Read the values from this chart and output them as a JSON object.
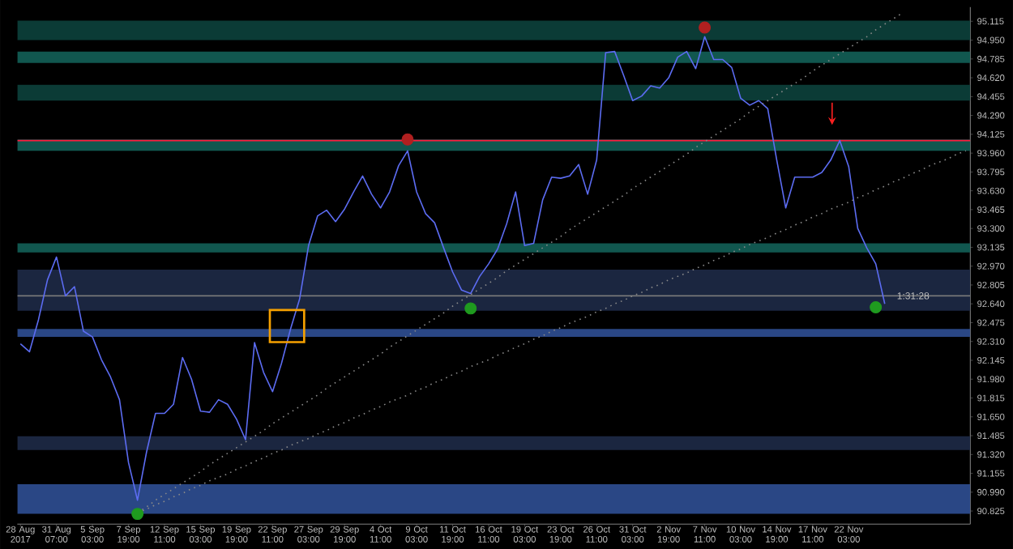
{
  "chart_data": {
    "type": "line",
    "categories": [
      "28 Aug 2017",
      null,
      null,
      null,
      "31 Aug 07:00",
      null,
      null,
      null,
      "5 Sep 03:00",
      null,
      null,
      null,
      "7 Sep 19:00",
      null,
      null,
      null,
      "12 Sep 11:00",
      null,
      null,
      null,
      "15 Sep 03:00",
      null,
      null,
      null,
      "19 Sep 19:00",
      null,
      null,
      null,
      "22 Sep 11:00",
      null,
      null,
      null,
      "27 Sep 03:00",
      null,
      null,
      null,
      "29 Sep 19:00",
      null,
      null,
      null,
      "4 Oct 11:00",
      null,
      null,
      null,
      "9 Oct 03:00",
      null,
      null,
      null,
      "11 Oct 19:00",
      null,
      null,
      null,
      "16 Oct 11:00",
      null,
      null,
      null,
      "19 Oct 03:00",
      null,
      null,
      null,
      "23 Oct 19:00",
      null,
      null,
      null,
      "26 Oct 11:00",
      null,
      null,
      null,
      "31 Oct 03:00",
      null,
      null,
      null,
      "2 Nov 19:00",
      null,
      null,
      null,
      "7 Nov 11:00",
      null,
      null,
      null,
      "10 Nov 03:00",
      null,
      null,
      null,
      "14 Nov 19:00",
      null,
      null,
      null,
      "17 Nov 11:00",
      null,
      null,
      null,
      "22 Nov 03:00",
      null,
      null,
      null,
      null,
      null,
      null,
      null,
      null,
      null,
      null,
      null,
      null,
      null
    ],
    "ylim": [
      90.71,
      95.24
    ],
    "yticks": [
      {
        "value": 90.825,
        "label": "90.825"
      },
      {
        "value": 90.99,
        "label": "90.990"
      },
      {
        "value": 91.155,
        "label": "91.155"
      },
      {
        "value": 91.32,
        "label": "91.320"
      },
      {
        "value": 91.485,
        "label": "91.485"
      },
      {
        "value": 91.65,
        "label": "91.650"
      },
      {
        "value": 91.815,
        "label": "91.815"
      },
      {
        "value": 91.98,
        "label": "91.980"
      },
      {
        "value": 92.145,
        "label": "92.145"
      },
      {
        "value": 92.31,
        "label": "92.310"
      },
      {
        "value": 92.475,
        "label": "92.475"
      },
      {
        "value": 92.64,
        "label": "92.640"
      },
      {
        "value": 92.805,
        "label": "92.805"
      },
      {
        "value": 92.97,
        "label": "92.970"
      },
      {
        "value": 93.135,
        "label": "93.135"
      },
      {
        "value": 93.3,
        "label": "93.300"
      },
      {
        "value": 93.465,
        "label": "93.465"
      },
      {
        "value": 93.63,
        "label": "93.630"
      },
      {
        "value": 93.795,
        "label": "93.795"
      },
      {
        "value": 93.96,
        "label": "93.960"
      },
      {
        "value": 94.125,
        "label": "94.125"
      },
      {
        "value": 94.29,
        "label": "94.290"
      },
      {
        "value": 94.455,
        "label": "94.455"
      },
      {
        "value": 94.62,
        "label": "94.620"
      },
      {
        "value": 94.785,
        "label": "94.785"
      },
      {
        "value": 94.95,
        "label": "94.950"
      },
      {
        "value": 95.115,
        "label": "95.115"
      }
    ],
    "bands": [
      {
        "axis": "y",
        "from": 94.95,
        "to": 95.12,
        "color": "#0b3b36"
      },
      {
        "axis": "y",
        "from": 94.75,
        "to": 94.85,
        "color": "#11574f"
      },
      {
        "axis": "y",
        "from": 94.42,
        "to": 94.56,
        "color": "#0b3b36"
      },
      {
        "axis": "y",
        "from": 93.98,
        "to": 94.08,
        "color": "#11574f"
      },
      {
        "axis": "y",
        "from": 93.09,
        "to": 93.17,
        "color": "#11574f"
      },
      {
        "axis": "y",
        "from": 92.58,
        "to": 92.94,
        "color": "#1b2640"
      },
      {
        "axis": "y",
        "from": 92.35,
        "to": 92.42,
        "color": "#2a4785"
      },
      {
        "axis": "y",
        "from": 91.36,
        "to": 91.48,
        "color": "#1b2640"
      },
      {
        "axis": "y",
        "from": 90.8,
        "to": 91.06,
        "color": "#2a4785"
      }
    ],
    "ref_lines": [
      {
        "axis": "y",
        "value": 94.07,
        "color": "#ff1a3c"
      },
      {
        "axis": "y",
        "value": 92.71,
        "color": "#7a7a7a"
      }
    ],
    "annotations": [
      {
        "text": "1:31:28",
        "y": 92.71
      }
    ],
    "series": [
      {
        "color": "#5c6cf2",
        "line_style": "solid",
        "values": [
          92.29,
          92.22,
          92.5,
          92.85,
          93.05,
          92.71,
          92.79,
          92.4,
          92.35,
          92.15,
          92.0,
          91.8,
          91.25,
          90.92,
          91.34,
          91.68,
          91.68,
          91.76,
          92.17,
          91.98,
          91.7,
          91.69,
          91.8,
          91.76,
          91.63,
          91.45,
          92.3,
          92.04,
          91.87,
          92.12,
          92.42,
          92.68,
          93.15,
          93.41,
          93.46,
          93.36,
          93.47,
          93.62,
          93.76,
          93.6,
          93.48,
          93.62,
          93.85,
          93.98,
          93.62,
          93.43,
          93.35,
          93.13,
          92.92,
          92.76,
          92.73,
          92.88,
          92.99,
          93.12,
          93.34,
          93.62,
          93.15,
          93.17,
          93.55,
          93.75,
          93.74,
          93.76,
          93.86,
          93.6,
          93.9,
          94.84,
          94.85,
          94.64,
          94.42,
          94.46,
          94.55,
          94.53,
          94.62,
          94.8,
          94.85,
          94.7,
          94.98,
          94.78,
          94.78,
          94.71,
          94.44,
          94.38,
          94.42,
          94.35,
          93.9,
          93.48,
          93.75,
          93.75,
          93.75,
          93.79,
          93.9,
          94.07,
          93.84,
          93.3,
          93.13,
          92.99,
          92.64,
          null,
          null,
          null,
          null,
          null,
          null,
          null,
          null,
          null
        ]
      },
      {
        "type": "line",
        "color": "#8a8a8a",
        "line_style": "dotted",
        "values": [
          null,
          null,
          null,
          null,
          null,
          null,
          null,
          null,
          null,
          null,
          null,
          null,
          null,
          90.81,
          90.86,
          90.92,
          90.97,
          91.02,
          91.07,
          91.12,
          91.17,
          91.23,
          91.28,
          91.33,
          91.38,
          91.43,
          91.48,
          91.53,
          91.59,
          91.64,
          91.69,
          91.74,
          91.79,
          91.84,
          91.9,
          91.95,
          92.0,
          92.05,
          92.1,
          92.15,
          92.2,
          92.26,
          92.31,
          92.36,
          92.41,
          92.46,
          92.51,
          92.56,
          92.62,
          92.67,
          92.72,
          92.77,
          92.82,
          92.87,
          92.93,
          92.98,
          93.03,
          93.08,
          93.13,
          93.18,
          93.23,
          93.29,
          93.34,
          93.39,
          93.44,
          93.49,
          93.54,
          93.59,
          93.65,
          93.7,
          93.75,
          93.8,
          93.85,
          93.9,
          93.95,
          94.01,
          94.06,
          94.11,
          94.16,
          94.21,
          94.26,
          94.32,
          94.37,
          94.42,
          94.47,
          94.52,
          94.57,
          94.62,
          94.68,
          94.73,
          94.78,
          94.83,
          94.88,
          94.93,
          94.98,
          95.04,
          95.09,
          95.14,
          95.19,
          null,
          null,
          null,
          null,
          null,
          null,
          null
        ]
      },
      {
        "type": "line",
        "color": "#8a8a8a",
        "line_style": "dotted",
        "values": [
          null,
          null,
          null,
          null,
          null,
          null,
          null,
          null,
          null,
          null,
          null,
          null,
          null,
          90.81,
          90.84,
          90.88,
          90.91,
          90.95,
          90.98,
          91.02,
          91.05,
          91.09,
          91.12,
          91.15,
          91.19,
          91.22,
          91.26,
          91.29,
          91.33,
          91.36,
          91.4,
          91.43,
          91.46,
          91.5,
          91.53,
          91.57,
          91.6,
          91.64,
          91.67,
          91.71,
          91.74,
          91.78,
          91.81,
          91.84,
          91.88,
          91.91,
          91.95,
          91.98,
          92.02,
          92.05,
          92.09,
          92.12,
          92.15,
          92.19,
          92.22,
          92.26,
          92.29,
          92.33,
          92.36,
          92.4,
          92.43,
          92.47,
          92.5,
          92.53,
          92.57,
          92.6,
          92.64,
          92.67,
          92.71,
          92.74,
          92.78,
          92.81,
          92.85,
          92.88,
          92.91,
          92.95,
          92.98,
          93.02,
          93.05,
          93.09,
          93.12,
          93.16,
          93.19,
          93.22,
          93.26,
          93.29,
          93.33,
          93.36,
          93.4,
          93.43,
          93.47,
          93.5,
          93.53,
          93.57,
          93.6,
          93.64,
          93.67,
          93.71,
          93.74,
          93.78,
          93.81,
          93.85,
          93.88,
          93.91,
          93.95,
          93.98
        ]
      },
      {
        "type": "scatter",
        "color": "#b02020",
        "marker": "circle",
        "values": [
          null,
          null,
          null,
          null,
          null,
          null,
          null,
          null,
          null,
          null,
          null,
          null,
          null,
          null,
          null,
          null,
          null,
          null,
          null,
          null,
          null,
          null,
          null,
          null,
          null,
          null,
          null,
          null,
          null,
          null,
          null,
          null,
          null,
          null,
          null,
          null,
          null,
          null,
          null,
          null,
          null,
          null,
          null,
          94.08,
          null,
          null,
          null,
          null,
          null,
          null,
          null,
          null,
          null,
          null,
          null,
          null,
          null,
          null,
          null,
          null,
          null,
          null,
          null,
          null,
          null,
          null,
          null,
          null,
          null,
          null,
          null,
          null,
          null,
          null,
          null,
          null,
          95.06,
          null,
          null,
          null,
          null,
          null,
          null,
          null,
          null,
          null,
          null,
          null,
          null,
          null,
          null,
          null,
          null,
          null,
          null,
          null,
          null,
          null,
          null,
          null,
          null,
          null,
          null,
          null,
          null,
          null
        ]
      },
      {
        "type": "scatter",
        "color": "#1f9a1f",
        "marker": "circle",
        "values": [
          null,
          null,
          null,
          null,
          null,
          null,
          null,
          null,
          null,
          null,
          null,
          null,
          null,
          90.8,
          null,
          null,
          null,
          null,
          null,
          null,
          null,
          null,
          null,
          null,
          null,
          null,
          null,
          null,
          null,
          null,
          null,
          null,
          null,
          null,
          null,
          null,
          null,
          null,
          null,
          null,
          null,
          null,
          null,
          null,
          null,
          null,
          null,
          null,
          null,
          null,
          92.6,
          null,
          null,
          null,
          null,
          null,
          null,
          null,
          null,
          null,
          null,
          null,
          null,
          null,
          null,
          null,
          null,
          null,
          null,
          null,
          null,
          null,
          null,
          null,
          null,
          null,
          null,
          null,
          null,
          null,
          null,
          null,
          null,
          null,
          null,
          null,
          null,
          null,
          null,
          null,
          null,
          null,
          null,
          null,
          null,
          92.61,
          null,
          null,
          null,
          null,
          null,
          null,
          null,
          null,
          null,
          null
        ]
      }
    ]
  }
}
